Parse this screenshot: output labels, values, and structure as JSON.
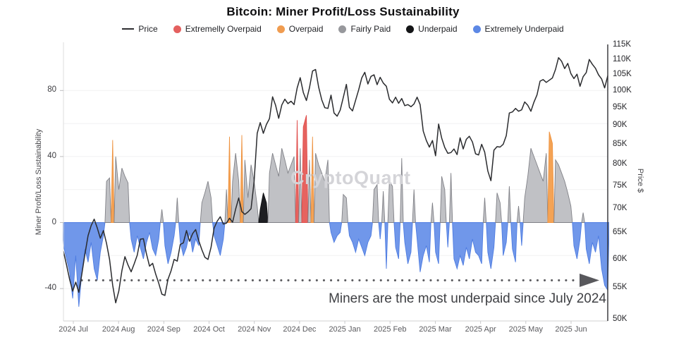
{
  "title": "Bitcoin: Miner Profit/Loss Sustainability",
  "legend": [
    {
      "label": "Price",
      "type": "line",
      "color": "#2e2e31"
    },
    {
      "label": "Extremelly Overpaid",
      "type": "dot",
      "color": "#e4605f"
    },
    {
      "label": "Overpaid",
      "type": "dot",
      "color": "#f09c50"
    },
    {
      "label": "Fairly Paid",
      "type": "dot",
      "color": "#97989c"
    },
    {
      "label": "Underpaid",
      "type": "dot",
      "color": "#141517"
    },
    {
      "label": "Extremely Underpaid",
      "type": "dot",
      "color": "#5c88e5"
    }
  ],
  "watermark": "CryptoQuant",
  "annotation": {
    "text": "Miners are the most underpaid since July 2024"
  },
  "colors": {
    "price_line": "#2a2b2e",
    "dotted_line": "#58585c",
    "grid": "#f1f1f2",
    "zero_grid": "#e7e7e9",
    "left_spine": "#dcdcde",
    "bottom_spine": "#d0d0d2",
    "right_spine": "#2f2f33",
    "bar_fills": {
      "r": "#e6635f",
      "o": "#f4a355",
      "g": "#c0c1c5",
      "k": "#1d1e22",
      "b": "#7097ea"
    },
    "bar_strokes": {
      "r": "#e04d4b",
      "o": "#ee923f",
      "g": "#808187",
      "k": "#101114",
      "b": "#4e7ce1"
    }
  },
  "chart_data": {
    "type": "mixed",
    "x_range": {
      "start": "2024 Jul",
      "end": "2025 Jun",
      "points": 178
    },
    "x_labels": [
      "2024 Jul",
      "2024 Aug",
      "2024 Sep",
      "2024 Oct",
      "2024 Nov",
      "2024 Dec",
      "2025 Jan",
      "2025 Feb",
      "2025 Mar",
      "2025 Apr",
      "2025 May",
      "2025 Jun"
    ],
    "yaxis_left": {
      "label": "Miner Profit/Loss Sustainability",
      "ticks": [
        80,
        40,
        0,
        -40
      ],
      "grid_ticks": [
        80,
        60,
        40,
        20,
        0,
        -20,
        -40
      ],
      "range": [
        -56,
        106
      ]
    },
    "yaxis_right": {
      "label": "Price $",
      "scale": "log",
      "ticks": [
        "115K",
        "110K",
        "105K",
        "100K",
        "95K",
        "90K",
        "85K",
        "80K",
        "75K",
        "70K",
        "65K",
        "60K",
        "55K",
        "50K"
      ],
      "range_k": [
        50,
        115
      ]
    },
    "annotation_line": {
      "y_value": -35,
      "style": "dotted-arrow-right"
    },
    "series": [
      {
        "name": "Price",
        "type": "line",
        "yaxis": "right",
        "unit": "thousand USD",
        "values": [
          61.5,
          59,
          56.5,
          54.5,
          56,
          54.3,
          57.5,
          61,
          64.5,
          66.5,
          67.8,
          66,
          64,
          65.5,
          63,
          60,
          55.5,
          52.6,
          54.5,
          58,
          60.5,
          59,
          57.8,
          59.2,
          60.8,
          63.8,
          63.9,
          61,
          58.8,
          59.3,
          57.4,
          55.8,
          54,
          53.8,
          56.5,
          58,
          60,
          59.7,
          62.8,
          63.1,
          65.5,
          63.4,
          64.9,
          65.7,
          63.5,
          61.8,
          60.4,
          60,
          62.3,
          66,
          67.4,
          68.3,
          66.8,
          67,
          68,
          67.2,
          69.9,
          72.3,
          69.4,
          68.8,
          69.3,
          70,
          76,
          88,
          90.9,
          88,
          90.4,
          92,
          98.3,
          95.8,
          92.1,
          95.9,
          97.6,
          96.3,
          97,
          96,
          101,
          104.2,
          99.6,
          97.2,
          101,
          106.3,
          106.8,
          101.2,
          97.4,
          95.1,
          94.9,
          98.8,
          93.6,
          92.7,
          94.4,
          98.1,
          102.1,
          95.2,
          94.2,
          97.3,
          100.4,
          104.1,
          105.9,
          102.2,
          104.6,
          105.1,
          102,
          104.3,
          102.5,
          101.5,
          97.6,
          96.5,
          98.2,
          96.4,
          97.8,
          95.7,
          96,
          95.4,
          96.2,
          98.2,
          96,
          88.6,
          86.1,
          84.4,
          86.1,
          82.2,
          90.5,
          86.7,
          84.3,
          82.8,
          83,
          83.9,
          82.5,
          86.8,
          83.9,
          86.4,
          87.2,
          85.7,
          82.7,
          82.4,
          85.1,
          83.1,
          78.5,
          76.2,
          83.6,
          84.5,
          84.4,
          85.1,
          87.4,
          93.6,
          93.9,
          94.9,
          94.1,
          94.5,
          96.8,
          95.8,
          94.1,
          96.7,
          98.9,
          103.1,
          103.6,
          102.7,
          103.4,
          104.1,
          106.8,
          110.7,
          109.5,
          107.1,
          108.8,
          105.5,
          103.9,
          105.3,
          101.5,
          104.5,
          105.8,
          110.1,
          108.5,
          107.2,
          105.1,
          103.8,
          101,
          104.8
        ]
      },
      {
        "name": "Miner Profit/Loss Sustainability",
        "type": "area",
        "yaxis": "left",
        "values": [
          -14,
          -22,
          -30,
          -46,
          -20,
          -51,
          -30,
          -16,
          -24,
          -12,
          -28,
          -35,
          -18,
          -8,
          25,
          27,
          50,
          40,
          20,
          33,
          28,
          24,
          -10,
          -18,
          -8,
          -15,
          -22,
          -12,
          -6,
          -16,
          -20,
          -10,
          8,
          -14,
          -25,
          -18,
          -8,
          15,
          -12,
          -20,
          -15,
          -6,
          -18,
          -10,
          -14,
          12,
          18,
          25,
          15,
          -8,
          -14,
          -20,
          -10,
          20,
          52,
          25,
          42,
          25,
          53,
          38,
          15,
          35,
          25,
          10,
          8,
          18,
          12,
          30,
          42,
          35,
          28,
          45,
          38,
          30,
          35,
          40,
          62,
          45,
          58,
          65,
          38,
          52,
          42,
          35,
          30,
          25,
          38,
          -6,
          -12,
          -8,
          -6,
          17,
          15,
          -8,
          -12,
          -18,
          -10,
          -15,
          -20,
          -12,
          -8,
          20,
          23,
          -10,
          19,
          -28,
          25,
          22,
          -15,
          -22,
          39,
          -12,
          -25,
          -18,
          20,
          -10,
          -30,
          -20,
          -14,
          -24,
          12,
          -18,
          -25,
          28,
          20,
          -15,
          30,
          -22,
          -28,
          -20,
          -26,
          -15,
          -22,
          -10,
          -18,
          -20,
          -25,
          15,
          -18,
          -28,
          -15,
          18,
          12,
          -20,
          -12,
          22,
          -16,
          -24,
          10,
          -14,
          15,
          28,
          45,
          40,
          35,
          30,
          25,
          42,
          55,
          48,
          38,
          35,
          30,
          25,
          18,
          10,
          -14,
          -22,
          -10,
          6,
          -16,
          -25,
          -12,
          -18,
          -8,
          -28,
          -38,
          -41
        ],
        "class_overrides": {
          "o": [
            16,
            54,
            58,
            81,
            158,
            159
          ],
          "r": [
            76,
            78,
            79
          ],
          "k": [
            64,
            65,
            66
          ]
        },
        "classes_legend": {
          "r": "Extremelly Overpaid",
          "o": "Overpaid",
          "g": "Fairly Paid",
          "k": "Underpaid",
          "b": "Extremely Underpaid"
        }
      }
    ]
  }
}
